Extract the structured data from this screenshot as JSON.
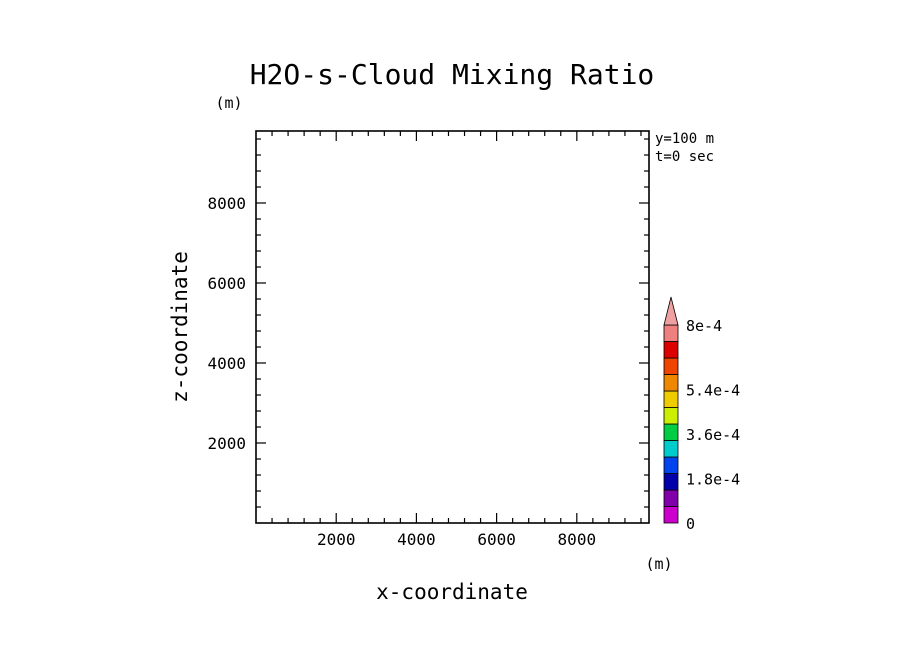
{
  "chart_data": {
    "type": "heatmap",
    "title": "H2O-s-Cloud Mixing Ratio",
    "xlabel": "x-coordinate",
    "ylabel": "z-coordinate",
    "x_unit": "(m)",
    "y_unit": "(m)",
    "xlim": [
      0,
      9800
    ],
    "ylim": [
      0,
      9800
    ],
    "x_ticks": [
      2000,
      4000,
      6000,
      8000
    ],
    "y_ticks": [
      2000,
      4000,
      6000,
      8000
    ],
    "x_tick_labels": [
      "2000",
      "4000",
      "6000",
      "8000"
    ],
    "y_tick_labels": [
      "2000",
      "4000",
      "6000",
      "8000"
    ],
    "minor_tick_step": 400,
    "annotations": [
      "y=100 m",
      "t=0 sec"
    ],
    "values": [],
    "colorbar": {
      "min": 0,
      "max": 0.0008,
      "extend": "max",
      "levels": [
        0,
        9e-05,
        0.00018,
        0.00027,
        0.00036,
        0.00045,
        0.00054,
        0.00063,
        0.00072,
        0.0008
      ],
      "colors": [
        "#cc00cc",
        "#8000aa",
        "#0000aa",
        "#0044ee",
        "#00cccc",
        "#00cc44",
        "#ccee00",
        "#eecc00",
        "#ee8800",
        "#ee4400",
        "#dd0000",
        "#ee8080"
      ],
      "extend_color": "#f0a0a0",
      "tick_labels": [
        {
          "value": 0,
          "label": "0"
        },
        {
          "value": 0.00018,
          "label": "1.8e-4"
        },
        {
          "value": 0.00036,
          "label": "3.6e-4"
        },
        {
          "value": 0.00054,
          "label": "5.4e-4"
        },
        {
          "value": 0.0008,
          "label": "8e-4"
        }
      ]
    }
  }
}
